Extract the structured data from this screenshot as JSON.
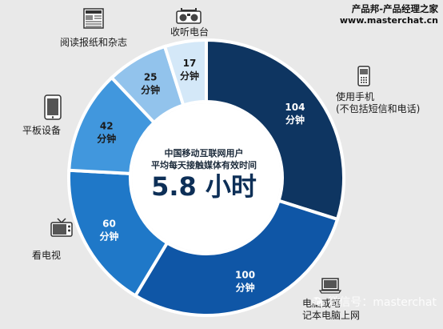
{
  "brand": {
    "line1": "产品邦-产品经理之家",
    "line2": "www.masterchat.cn"
  },
  "center": {
    "line1": "中国移动互联网用户",
    "line2": "平均每天接触媒体有效时间",
    "total": "5.8 小时"
  },
  "watermark": "微信号：masterchat",
  "chart_data": {
    "type": "pie",
    "unit": "分钟",
    "slices": [
      {
        "name": "使用手机\n(不包括短信和电话)",
        "value": 104,
        "color": "#0e3561",
        "text_color": "#ffffff"
      },
      {
        "name": "电脑或笔\n记本电脑上网",
        "value": 100,
        "color": "#0f56a6",
        "text_color": "#ffffff"
      },
      {
        "name": "看电视",
        "value": 60,
        "color": "#1f78c8",
        "text_color": "#ffffff"
      },
      {
        "name": "平板设备",
        "value": 42,
        "color": "#4197dd",
        "text_color": "#1a1a1a"
      },
      {
        "name": "阅读报纸和杂志",
        "value": 25,
        "color": "#92c3ec",
        "text_color": "#1a1a1a"
      },
      {
        "name": "收听电台",
        "value": 17,
        "color": "#d4e8f8",
        "text_color": "#1a1a1a"
      }
    ]
  },
  "icons": {
    "phone": "mobile-phone-icon",
    "laptop": "laptop-icon",
    "tv": "tv-icon",
    "tablet": "tablet-icon",
    "newspaper": "newspaper-icon",
    "radio": "radio-icon"
  }
}
